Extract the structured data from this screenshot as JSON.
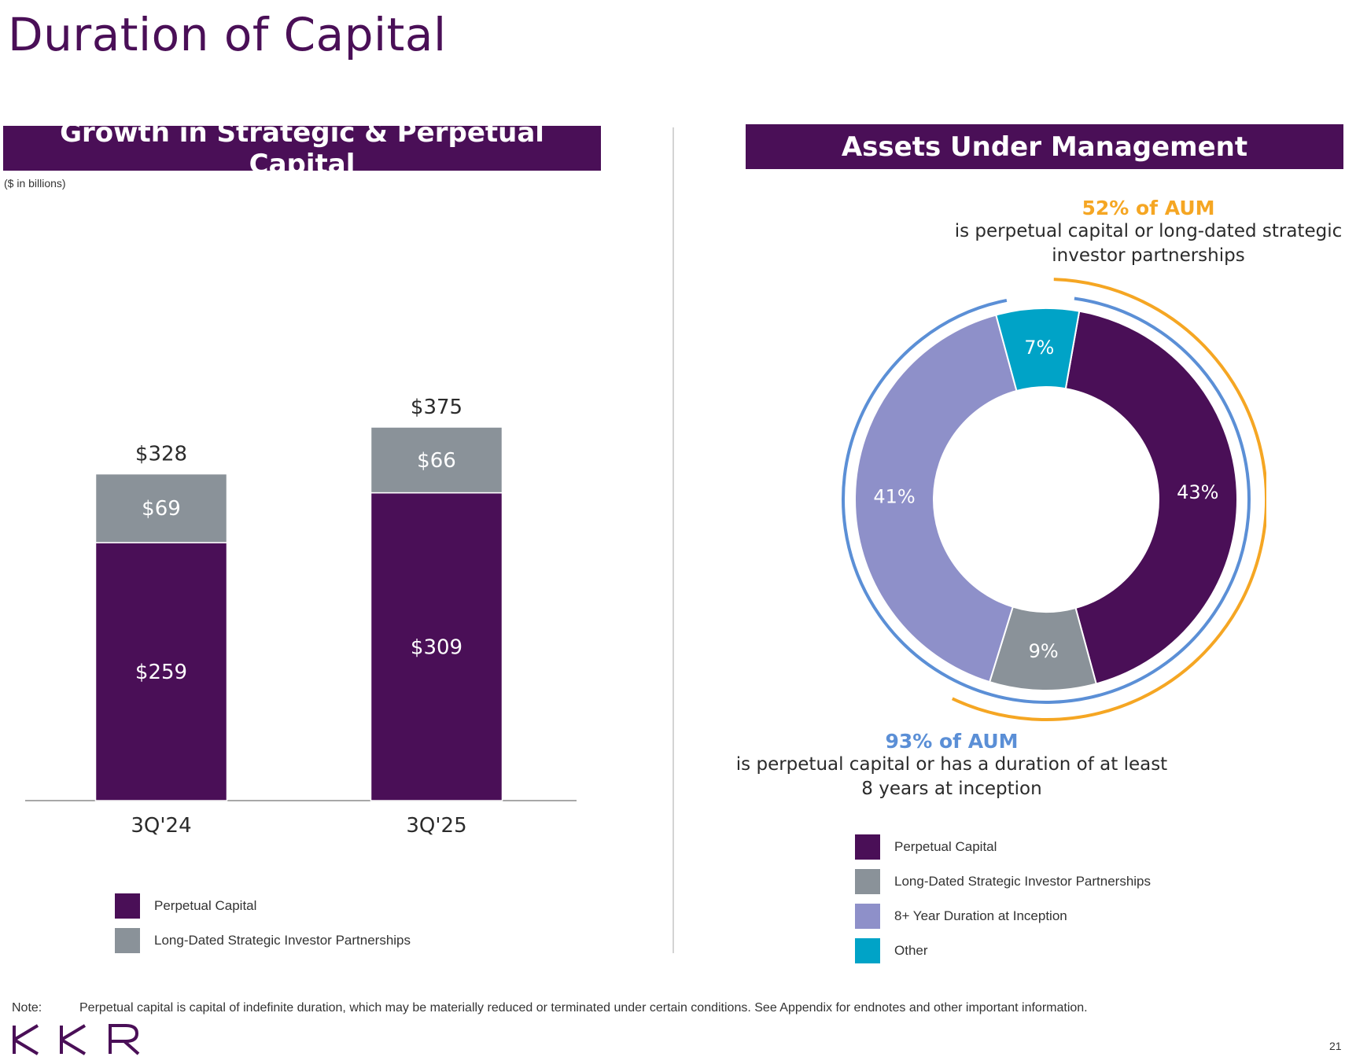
{
  "page": {
    "title": "Duration of Capital",
    "page_number": "21",
    "note_label": "Note:",
    "note_text": "Perpetual capital is capital of indefinite duration, which may be materially reduced or terminated under certain conditions. See Appendix for endnotes and other important information.",
    "logo_text": "KKR"
  },
  "left_panel": {
    "title": "Growth in Strategic & Perpetual Capital",
    "units": "($ in billions)"
  },
  "right_panel": {
    "title": "Assets Under Management",
    "callout_top": {
      "highlight": "52% of AUM",
      "text": "is perpetual capital or long-dated strategic investor partnerships"
    },
    "callout_bottom": {
      "highlight": "93% of AUM",
      "text": "is perpetual capital or has a duration of at least 8 years at inception"
    }
  },
  "colors": {
    "perpetual": "#4a0f57",
    "long_dated": "#8a9299",
    "eight_year": "#8e90c9",
    "other": "#00a3c7",
    "orange_arc": "#f5a623",
    "blue_arc": "#5b8fd6"
  },
  "chart_data": [
    {
      "type": "bar",
      "stacked": true,
      "categories": [
        "3Q'24",
        "3Q'25"
      ],
      "series": [
        {
          "name": "Perpetual Capital",
          "values": [
            259,
            309
          ],
          "labels": [
            "$259",
            "$309"
          ],
          "color": "#4a0f57"
        },
        {
          "name": "Long-Dated Strategic Investor Partnerships",
          "values": [
            69,
            66
          ],
          "labels": [
            "$69",
            "$66"
          ],
          "color": "#8a9299"
        }
      ],
      "totals": [
        328,
        375
      ],
      "total_labels": [
        "$328",
        "$375"
      ],
      "ylim": [
        0,
        375
      ],
      "grid": false,
      "legend_position": "bottom-left"
    },
    {
      "type": "pie",
      "donut": true,
      "slices": [
        {
          "name": "Perpetual Capital",
          "value": 43,
          "label": "43%",
          "color": "#4a0f57"
        },
        {
          "name": "Long-Dated Strategic Investor Partnerships",
          "value": 9,
          "label": "9%",
          "color": "#8a9299"
        },
        {
          "name": "8+ Year Duration at Inception",
          "value": 41,
          "label": "41%",
          "color": "#8e90c9"
        },
        {
          "name": "Other",
          "value": 7,
          "label": "7%",
          "color": "#00a3c7"
        }
      ],
      "legend_position": "bottom"
    }
  ]
}
